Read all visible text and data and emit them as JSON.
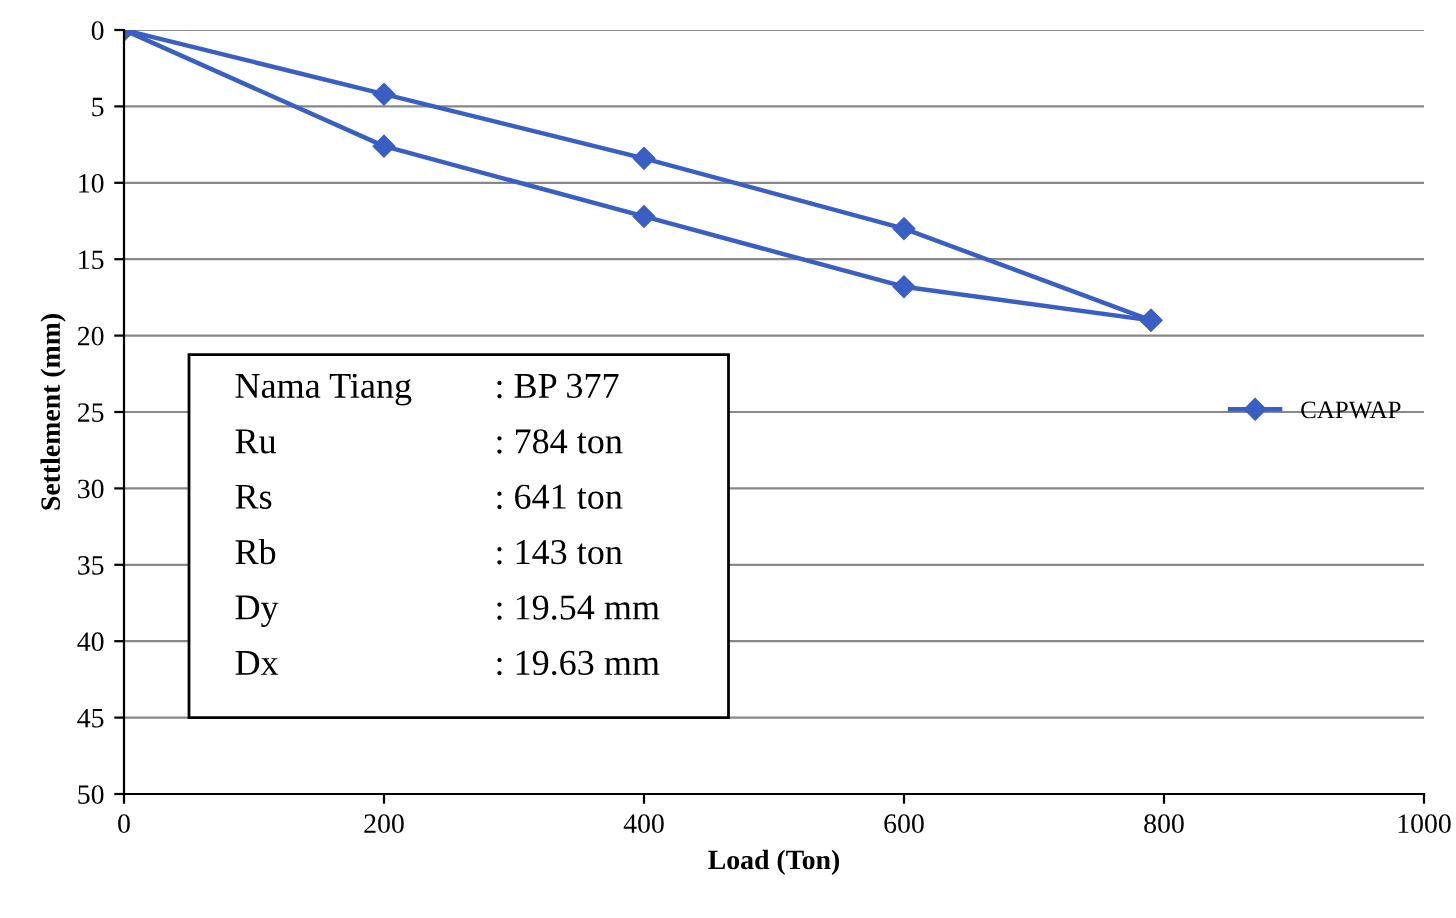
{
  "chart_data": {
    "type": "line",
    "xlabel": "Load (Ton)",
    "ylabel": "Settlement (mm)",
    "series": [
      {
        "name": "CAPWAP",
        "color": "#3a5fc4",
        "x": [
          0,
          200,
          400,
          600,
          790
        ],
        "values": [
          0,
          4.2,
          8.4,
          13,
          19
        ]
      },
      {
        "color": "#3a5fc4",
        "x": [
          790,
          600,
          400,
          200,
          0
        ],
        "values": [
          19,
          16.8,
          12.2,
          7.6,
          0
        ]
      }
    ],
    "xlim": [
      0,
      1000
    ],
    "xticks": [
      0,
      200,
      400,
      600,
      800,
      1000
    ],
    "ylim": [
      50,
      0
    ],
    "yticks": [
      0,
      5,
      10,
      15,
      20,
      25,
      30,
      35,
      40,
      45,
      50
    ],
    "grid": "y",
    "legend": "right",
    "marker": "diamond",
    "line_style": "solid",
    "annotations": [
      "Nama Tiang",
      ": BP 377",
      "Ru",
      ": 784 ton",
      "Rs",
      ": 641 ton",
      "Rb",
      ": 143 ton",
      "Dy",
      ": 19.54 mm",
      "Dx",
      ": 19.63 mm"
    ]
  }
}
